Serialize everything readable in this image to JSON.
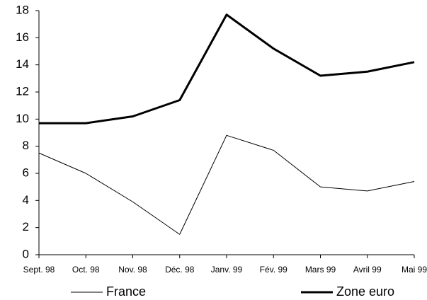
{
  "chart_data": {
    "type": "line",
    "categories": [
      "Sept. 98",
      "Oct. 98",
      "Nov. 98",
      "Déc. 98",
      "Janv. 99",
      "Fév. 99",
      "Mars 99",
      "Avril 99",
      "Mai 99"
    ],
    "series": [
      {
        "name": "France",
        "color": "#000000",
        "width": 1,
        "values": [
          7.5,
          6.0,
          3.9,
          1.5,
          8.8,
          7.7,
          5.0,
          4.7,
          5.4
        ]
      },
      {
        "name": "Zone euro",
        "color": "#000000",
        "width": 3,
        "values": [
          9.7,
          9.7,
          10.2,
          11.4,
          17.7,
          15.2,
          13.2,
          13.5,
          14.2
        ]
      }
    ],
    "ylim": [
      0,
      18
    ],
    "yticks": [
      0,
      2,
      4,
      6,
      8,
      10,
      12,
      14,
      16,
      18
    ],
    "grid": false,
    "legend": "bottom"
  }
}
